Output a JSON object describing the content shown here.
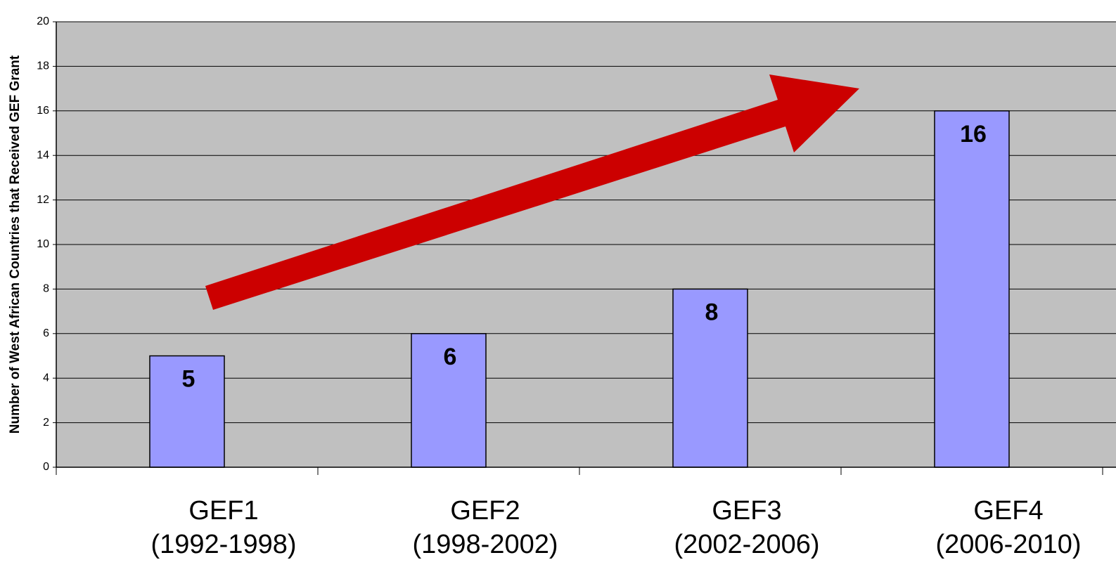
{
  "chart_data": {
    "type": "bar",
    "y_label": "Number of West African Countries that Received GEF Grant",
    "categories": [
      "GEF1\n(1992-1998)",
      "GEF2\n(1998-2002)",
      "GEF3\n(2002-2006)",
      "GEF4\n(2006-2010)"
    ],
    "values": [
      5,
      6,
      8,
      16
    ],
    "color": "#9999ff",
    "ylim": [
      0,
      20
    ],
    "yticks": [
      0,
      2,
      4,
      6,
      8,
      10,
      12,
      14,
      16,
      18,
      20
    ],
    "grid": true
  }
}
